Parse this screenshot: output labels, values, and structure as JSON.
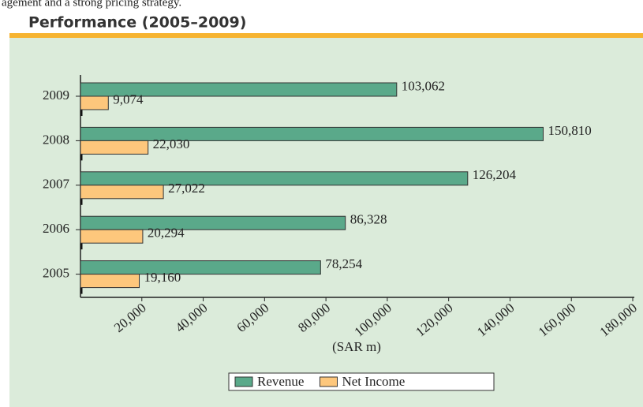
{
  "top_text": "agement and a strong pricing strategy.",
  "chart_data": {
    "type": "hbar",
    "title": "Performance (2005–2009)",
    "categories": [
      "2009",
      "2008",
      "2007",
      "2006",
      "2005"
    ],
    "series": [
      {
        "name": "Revenue",
        "color": "#5aa98a",
        "values": [
          103062,
          150810,
          126204,
          86328,
          78254
        ],
        "value_labels": [
          "103,062",
          "150,810",
          "126,204",
          "86,328",
          "78,254"
        ]
      },
      {
        "name": "Net Income",
        "color": "#fdc77c",
        "values": [
          9074,
          22030,
          27022,
          20294,
          19160
        ],
        "value_labels": [
          "9,074",
          "22,030",
          "27,022",
          "20,294",
          "19,160"
        ]
      }
    ],
    "xlabel": "(SAR m)",
    "xlim": [
      0,
      180000
    ],
    "xticks": [
      {
        "value": 20000,
        "label": "20,000"
      },
      {
        "value": 40000,
        "label": "40,000"
      },
      {
        "value": 60000,
        "label": "60,000"
      },
      {
        "value": 80000,
        "label": "80,000"
      },
      {
        "value": 100000,
        "label": "100,000"
      },
      {
        "value": 120000,
        "label": "120,000"
      },
      {
        "value": 140000,
        "label": "140,000"
      },
      {
        "value": 160000,
        "label": "160,000"
      },
      {
        "value": 180000,
        "label": "180,000"
      }
    ],
    "legend": "bottom"
  }
}
